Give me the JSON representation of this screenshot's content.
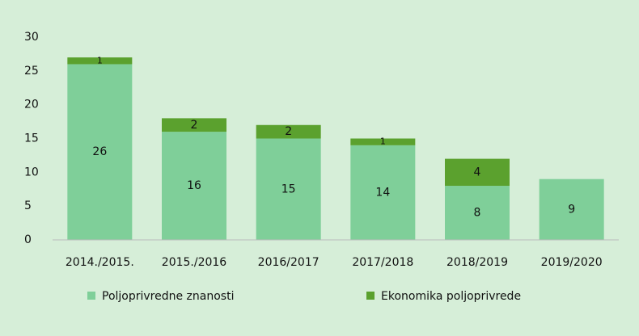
{
  "chart_data": {
    "type": "stacked_bar",
    "categories": [
      "2014./2015.",
      "2015./2016",
      "2016/2017",
      "2017/2018",
      "2018/2019",
      "2019/2020"
    ],
    "series": [
      {
        "name": "Poljoprivredne znanosti",
        "color": "#7fcf99",
        "values": [
          26,
          16,
          15,
          14,
          8,
          9
        ]
      },
      {
        "name": "Ekonomika poljoprivrede",
        "color": "#5ba12e",
        "values": [
          1,
          2,
          2,
          1,
          4,
          null
        ]
      }
    ],
    "ylim": [
      0,
      30
    ],
    "yticks": [
      0,
      5,
      10,
      15,
      20,
      25,
      30
    ],
    "grid": false,
    "legend": "bottom"
  }
}
